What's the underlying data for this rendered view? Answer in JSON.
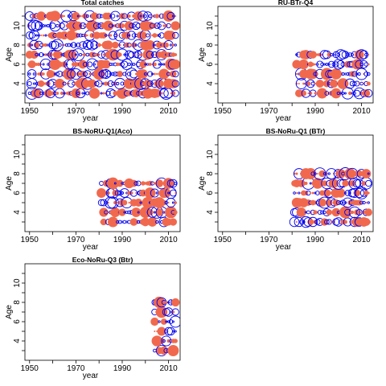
{
  "chart_data": [
    {
      "type": "scatter",
      "title": "Total catches",
      "xlabel": "year",
      "ylabel": "Age",
      "xlim": [
        1948,
        2015
      ],
      "ylim": [
        2,
        12
      ],
      "xticks": [
        1950,
        1970,
        1990,
        2010
      ],
      "yticks": [
        4,
        6,
        8,
        10
      ],
      "marker": "bubble: filled orange = positive residual, open blue = negative residual",
      "years": [
        1950,
        2013
      ],
      "ages": [
        3,
        11
      ],
      "residual_pattern": "mixed"
    },
    {
      "type": "scatter",
      "title": "RU-BTr-Q4",
      "xlabel": "year",
      "ylabel": "Age",
      "xlim": [
        1948,
        2015
      ],
      "ylim": [
        2,
        12
      ],
      "xticks": [
        1950,
        1970,
        1990,
        2010
      ],
      "yticks": [
        4,
        6,
        8,
        10
      ],
      "marker": "bubble: filled orange = positive residual, open blue = negative residual",
      "years": [
        1982,
        2013
      ],
      "ages": [
        3,
        7
      ],
      "residual_pattern": "early_pos"
    },
    {
      "type": "scatter",
      "title": "BS-NoRU-Q1(Aco)",
      "xlabel": "year",
      "ylabel": "Age",
      "xlim": [
        1948,
        2015
      ],
      "ylim": [
        2,
        12
      ],
      "xticks": [
        1950,
        1970,
        1990,
        2010
      ],
      "yticks": [
        4,
        6,
        8,
        10
      ],
      "marker": "bubble: filled orange = positive residual, open blue = negative residual",
      "years": [
        1981,
        2013
      ],
      "ages": [
        3,
        7
      ],
      "residual_pattern": "mixed"
    },
    {
      "type": "scatter",
      "title": "BS-NoRu-Q1 (BTr)",
      "xlabel": "year",
      "ylabel": "Age",
      "xlim": [
        1948,
        2015
      ],
      "ylim": [
        2,
        12
      ],
      "xticks": [
        1950,
        1970,
        1990,
        2010
      ],
      "yticks": [
        4,
        6,
        8,
        10
      ],
      "marker": "bubble: filled orange = positive residual, open blue = negative residual",
      "years": [
        1981,
        2013
      ],
      "ages": [
        3,
        8
      ],
      "residual_pattern": "mixed"
    },
    {
      "type": "scatter",
      "title": "Eco-NoRu-Q3 (Btr)",
      "xlabel": "year",
      "ylabel": "Age",
      "xlim": [
        1948,
        2015
      ],
      "ylim": [
        2,
        12
      ],
      "xticks": [
        1950,
        1970,
        1990,
        2010
      ],
      "yticks": [
        4,
        6,
        8,
        10
      ],
      "marker": "bubble: filled orange = positive residual, open blue = negative residual",
      "years": [
        2004,
        2013
      ],
      "ages": [
        3,
        8
      ],
      "residual_pattern": "late_pos"
    }
  ],
  "colors": {
    "positive": "#f0694e",
    "negative": "#0000ee",
    "frame": "#000000"
  }
}
